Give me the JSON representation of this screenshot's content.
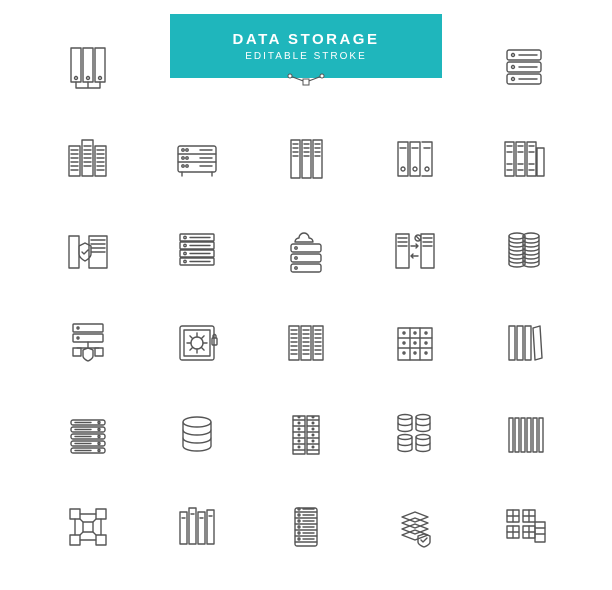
{
  "banner": {
    "title": "DATA STORAGE",
    "subtitle": "EDITABLE STROKE",
    "bg_color": "#1fb6bc",
    "text_color": "#ffffff"
  },
  "icon_style": {
    "stroke": "#555555",
    "stroke_width": 1.4,
    "fill": "none",
    "size": 50
  },
  "icons": [
    {
      "name": "binders-icon",
      "row": 0,
      "col": 0
    },
    {
      "name": "server-rack-3u-icon",
      "row": 0,
      "col": 4
    },
    {
      "name": "server-towers-icon",
      "row": 1,
      "col": 0
    },
    {
      "name": "rack-horizontal-icon",
      "row": 1,
      "col": 1
    },
    {
      "name": "tall-servers-icon",
      "row": 1,
      "col": 2
    },
    {
      "name": "open-binders-icon",
      "row": 1,
      "col": 3
    },
    {
      "name": "archive-binders-icon",
      "row": 1,
      "col": 4
    },
    {
      "name": "server-shield-icon",
      "row": 2,
      "col": 0
    },
    {
      "name": "rack-4u-icon",
      "row": 2,
      "col": 1
    },
    {
      "name": "server-cloud-icon",
      "row": 2,
      "col": 2
    },
    {
      "name": "server-sync-icon",
      "row": 2,
      "col": 3
    },
    {
      "name": "disk-stacks-icon",
      "row": 2,
      "col": 4
    },
    {
      "name": "server-network-shield-icon",
      "row": 3,
      "col": 0
    },
    {
      "name": "vault-lock-icon",
      "row": 3,
      "col": 1
    },
    {
      "name": "triple-server-icon",
      "row": 3,
      "col": 2
    },
    {
      "name": "datacenter-building-icon",
      "row": 3,
      "col": 3
    },
    {
      "name": "books-shelf-icon",
      "row": 3,
      "col": 4
    },
    {
      "name": "stacked-drives-icon",
      "row": 4,
      "col": 0
    },
    {
      "name": "database-cylinder-icon",
      "row": 4,
      "col": 1
    },
    {
      "name": "cabinet-drawers-icon",
      "row": 4,
      "col": 2
    },
    {
      "name": "barrels-icon",
      "row": 4,
      "col": 3
    },
    {
      "name": "vertical-slats-icon",
      "row": 4,
      "col": 4
    },
    {
      "name": "blockchain-nodes-icon",
      "row": 5,
      "col": 0
    },
    {
      "name": "library-books-icon",
      "row": 5,
      "col": 1
    },
    {
      "name": "server-tall-rack-icon",
      "row": 5,
      "col": 2
    },
    {
      "name": "layers-shield-icon",
      "row": 5,
      "col": 3
    },
    {
      "name": "cube-modules-icon",
      "row": 5,
      "col": 4
    }
  ]
}
